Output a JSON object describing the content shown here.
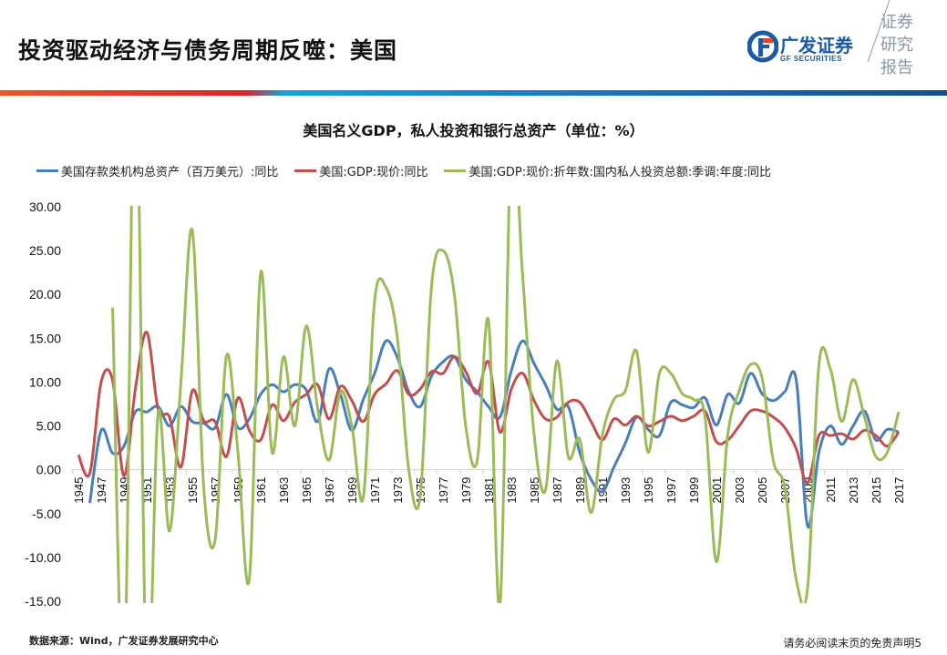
{
  "header": {
    "title": "投资驱动经济与债务周期反噬：美国",
    "logo_cn": "广发证券",
    "logo_en": "GF SECURITIES",
    "report_tag": [
      "证券",
      "研究",
      "报告"
    ]
  },
  "footer": {
    "source": "数据来源：Wind，广发证券发展研究中心",
    "disclaimer": "请务必阅读末页的免责声明",
    "page_number": "5"
  },
  "chart_data": {
    "type": "line",
    "title": "美国名义GDP，私人投资和银行总资产（单位：%）",
    "xlabel": "",
    "ylabel": "",
    "ylim": [
      -15,
      30
    ],
    "yticks": [
      "30.00",
      "25.00",
      "20.00",
      "15.00",
      "10.00",
      "5.00",
      "0.00",
      "-5.00",
      "-10.00",
      "-15.00"
    ],
    "ytick_values": [
      30,
      25,
      20,
      15,
      10,
      5,
      0,
      -5,
      -10,
      -15
    ],
    "xticks": [
      "1945",
      "1947",
      "1949",
      "1951",
      "1953",
      "1955",
      "1957",
      "1959",
      "1961",
      "1963",
      "1965",
      "1967",
      "1969",
      "1971",
      "1973",
      "1975",
      "1977",
      "1979",
      "1981",
      "1983",
      "1985",
      "1987",
      "1989",
      "1991",
      "1993",
      "1995",
      "1997",
      "1999",
      "2001",
      "2003",
      "2005",
      "2007",
      "2009",
      "2011",
      "2013",
      "2015",
      "2017"
    ],
    "x_start": 1945,
    "legend_position": "top",
    "grid": false,
    "series": [
      {
        "name": "美国存款类机构总资产（百万美元）:同比",
        "color": "#4a7ebb",
        "start_year": 1946,
        "values": [
          -3.8,
          4.5,
          1.9,
          2.7,
          6.6,
          6.6,
          7.2,
          5.0,
          7.2,
          5.5,
          5.3,
          4.8,
          8.6,
          4.8,
          5.8,
          8.6,
          9.7,
          8.9,
          9.7,
          9.1,
          5.5,
          11.5,
          8.6,
          4.5,
          8.0,
          11.0,
          14.7,
          12.8,
          8.9,
          7.2,
          10.7,
          12.3,
          12.9,
          10.3,
          8.9,
          7.2,
          6.0,
          11.3,
          14.7,
          12.1,
          9.7,
          6.9,
          7.2,
          2.0,
          -1.1,
          -2.5,
          0.3,
          3.0,
          6.0,
          4.6,
          3.9,
          7.7,
          7.4,
          7.1,
          8.2,
          5.1,
          8.6,
          7.6,
          11.0,
          8.7,
          7.9,
          8.9,
          10.3,
          -6.4,
          2.0,
          5.0,
          2.9,
          5.0,
          6.7,
          3.4,
          4.6,
          4.3
        ]
      },
      {
        "name": "美国:GDP:现价:同比",
        "color": "#c0504d",
        "start_year": 1945,
        "values": [
          1.7,
          -0.4,
          10.0,
          10.2,
          -0.7,
          9.2,
          15.7,
          6.9,
          6.0,
          0.3,
          9.0,
          5.6,
          5.5,
          1.5,
          8.2,
          4.5,
          3.4,
          7.4,
          5.6,
          7.7,
          8.6,
          9.7,
          5.8,
          9.5,
          7.9,
          5.5,
          8.6,
          9.8,
          11.3,
          8.6,
          9.2,
          11.2,
          11.0,
          12.9,
          11.2,
          8.7,
          12.3,
          4.3,
          9.2,
          11.0,
          7.9,
          5.8,
          6.0,
          7.7,
          7.7,
          5.5,
          3.4,
          5.8,
          5.1,
          6.1,
          5.0,
          5.5,
          6.1,
          5.6,
          6.1,
          6.7,
          3.2,
          3.4,
          5.0,
          6.7,
          6.7,
          6.0,
          4.8,
          2.4,
          -1.5,
          3.9,
          3.9,
          4.1,
          3.5,
          4.5,
          3.9,
          2.7,
          4.3
        ]
      },
      {
        "name": "美国:GDP:现价:折年数:国内私人投资总额:季调:年度:同比",
        "color": "#9bbb59",
        "start_year": 1948,
        "values": [
          18.5,
          -25,
          48,
          -25,
          6.5,
          -7,
          10,
          27.3,
          -2,
          -8,
          13,
          2,
          -12.5,
          22.5,
          2,
          12.9,
          5,
          16.4,
          7,
          1.1,
          8.9,
          5,
          -3.2,
          19.3,
          20.8,
          15,
          0,
          -3,
          21,
          25,
          20,
          5,
          1,
          17,
          -15.5,
          38,
          22,
          4,
          -2.3,
          12.4,
          1.5,
          3.5,
          -4.9,
          4,
          8,
          9,
          13.5,
          2,
          11,
          11,
          8.7,
          8,
          6,
          -10.5,
          4,
          9,
          12,
          10.5,
          1,
          -2,
          -12.5,
          -13.5,
          12,
          11.5,
          5.5,
          10.3,
          6,
          1.5,
          2,
          6.6
        ]
      }
    ]
  }
}
